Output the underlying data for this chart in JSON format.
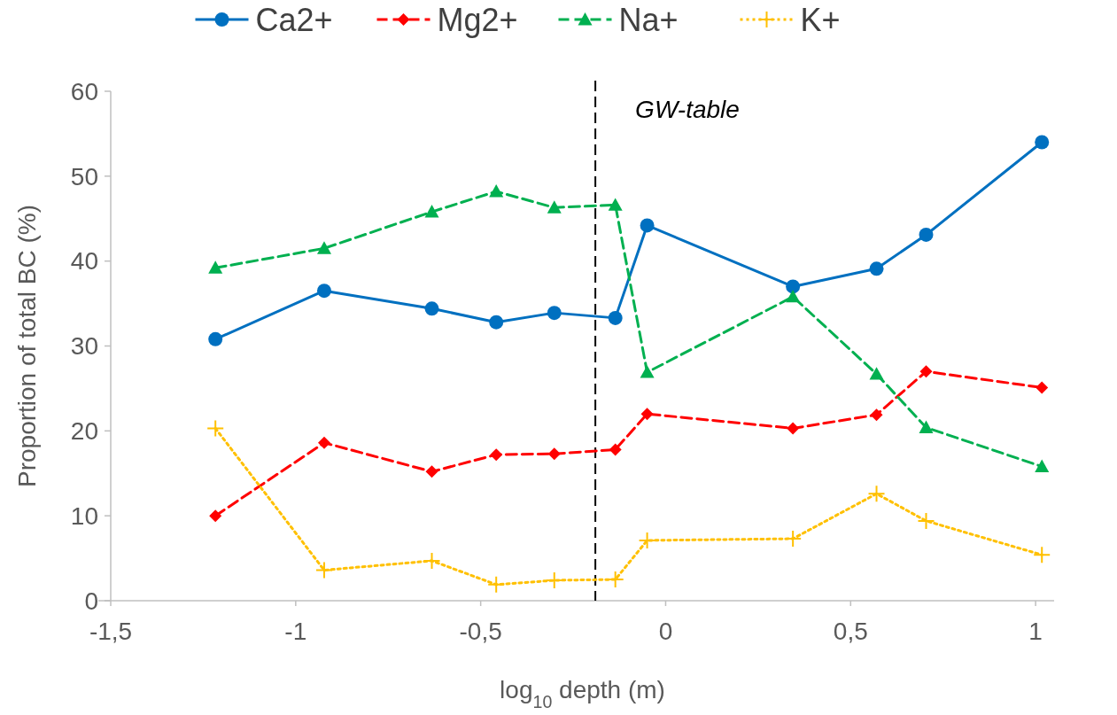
{
  "chart_data": {
    "type": "line",
    "xlabel": "log$_{10}$ depth (m)",
    "ylabel": "Proportion of total BC (%)",
    "x": [
      -1.217,
      -0.923,
      -0.632,
      -0.458,
      -0.301,
      -0.136,
      -0.05,
      0.344,
      0.57,
      0.704,
      1.017
    ],
    "series": [
      {
        "name": "Ca2+",
        "color": "#0070c0",
        "marker": "circle",
        "line_style": "solid",
        "values": [
          30.8,
          36.5,
          34.4,
          32.8,
          33.9,
          33.3,
          44.2,
          37.0,
          39.1,
          43.1,
          54.0
        ]
      },
      {
        "name": "Mg2+",
        "color": "#ff0000",
        "marker": "diamond",
        "line_style": "dashed",
        "values": [
          10.0,
          18.6,
          15.2,
          17.2,
          17.3,
          17.8,
          22.0,
          20.3,
          21.9,
          27.0,
          25.1
        ]
      },
      {
        "name": "Na+",
        "color": "#00b050",
        "marker": "triangle",
        "line_style": "dashed",
        "values": [
          39.2,
          41.5,
          45.8,
          48.2,
          46.3,
          46.6,
          26.9,
          35.8,
          26.7,
          20.4,
          15.8
        ]
      },
      {
        "name": "K+",
        "color": "#ffc000",
        "marker": "cross",
        "line_style": "dotted",
        "values": [
          20.3,
          3.6,
          4.7,
          1.9,
          2.4,
          2.5,
          7.1,
          7.3,
          12.6,
          9.4,
          5.4
        ]
      }
    ],
    "xlim": [
      -1.5,
      1.05
    ],
    "xticks": [
      {
        "value": -1.5,
        "label": "-1,5"
      },
      -1,
      {
        "value": -0.5,
        "label": "-0,5"
      },
      0,
      {
        "value": 0.5,
        "label": "0,5"
      },
      1
    ],
    "ylim": [
      0,
      60
    ],
    "yticks": [
      0,
      10,
      20,
      30,
      40,
      50,
      60
    ],
    "ref_lines": [
      {
        "axis": "x",
        "value": -0.19,
        "label": "GW-table",
        "color": "#000000",
        "line_style": "dashed"
      }
    ],
    "legend": "top",
    "grid": false
  }
}
